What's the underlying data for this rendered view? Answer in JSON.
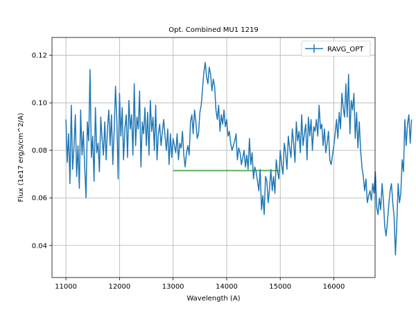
{
  "chart_data": {
    "type": "line",
    "title": "Opt. Combined MU1 1219",
    "xlabel": "Wavelength (A)",
    "ylabel": "Flux (1e17 erg/s/cm^2/A)",
    "xlim": [
      10740,
      16770
    ],
    "ylim": [
      0.0265,
      0.1275
    ],
    "xticks": [
      11000,
      12000,
      13000,
      14000,
      15000,
      16000
    ],
    "yticks": [
      0.04,
      0.06,
      0.08,
      0.1,
      0.12
    ],
    "xtick_labels": [
      "11000",
      "12000",
      "13000",
      "14000",
      "15000",
      "16000"
    ],
    "ytick_labels": [
      "0.04",
      "0.06",
      "0.08",
      "0.10",
      "0.12"
    ],
    "grid": true,
    "legend": {
      "position": "top-right"
    },
    "series": [
      {
        "name": "RAVG_OPT",
        "color": "#1f77b4",
        "style": "line-with-errorbars",
        "x_start": 11000,
        "x_step": 25,
        "values": [
          0.093,
          0.075,
          0.087,
          0.066,
          0.099,
          0.072,
          0.081,
          0.095,
          0.069,
          0.082,
          0.064,
          0.097,
          0.078,
          0.088,
          0.073,
          0.06,
          0.092,
          0.084,
          0.114,
          0.077,
          0.086,
          0.067,
          0.098,
          0.079,
          0.083,
          0.071,
          0.094,
          0.085,
          0.078,
          0.092,
          0.076,
          0.089,
          0.097,
          0.082,
          0.095,
          0.074,
          0.088,
          0.107,
          0.093,
          0.068,
          0.104,
          0.086,
          0.098,
          0.076,
          0.089,
          0.095,
          0.077,
          0.101,
          0.089,
          0.095,
          0.078,
          0.108,
          0.082,
          0.094,
          0.089,
          0.105,
          0.073,
          0.092,
          0.087,
          0.098,
          0.082,
          0.096,
          0.078,
          0.101,
          0.088,
          0.094,
          0.08,
          0.099,
          0.076,
          0.087,
          0.091,
          0.082,
          0.088,
          0.093,
          0.086,
          0.08,
          0.089,
          0.074,
          0.087,
          0.077,
          0.085,
          0.082,
          0.079,
          0.087,
          0.076,
          0.083,
          0.081,
          0.088,
          0.078,
          0.073,
          0.079,
          0.082,
          0.078,
          0.092,
          0.095,
          0.087,
          0.097,
          0.092,
          0.085,
          0.087,
          0.096,
          0.099,
          0.106,
          0.113,
          0.117,
          0.111,
          0.108,
          0.115,
          0.112,
          0.105,
          0.11,
          0.107,
          0.097,
          0.093,
          0.099,
          0.088,
          0.095,
          0.091,
          0.097,
          0.09,
          0.093,
          0.086,
          0.088,
          0.083,
          0.08,
          0.082,
          0.084,
          0.087,
          0.076,
          0.081,
          0.079,
          0.074,
          0.077,
          0.08,
          0.073,
          0.078,
          0.072,
          0.085,
          0.074,
          0.079,
          0.068,
          0.073,
          0.071,
          0.067,
          0.063,
          0.072,
          0.055,
          0.061,
          0.053,
          0.069,
          0.067,
          0.058,
          0.064,
          0.072,
          0.063,
          0.069,
          0.062,
          0.076,
          0.071,
          0.068,
          0.08,
          0.074,
          0.07,
          0.083,
          0.079,
          0.072,
          0.086,
          0.081,
          0.077,
          0.089,
          0.083,
          0.075,
          0.092,
          0.084,
          0.088,
          0.079,
          0.095,
          0.082,
          0.087,
          0.091,
          0.076,
          0.094,
          0.086,
          0.093,
          0.08,
          0.09,
          0.088,
          0.093,
          0.086,
          0.099,
          0.089,
          0.091,
          0.082,
          0.089,
          0.079,
          0.083,
          0.088,
          0.076,
          0.074,
          0.078,
          0.082,
          0.087,
          0.093,
          0.085,
          0.096,
          0.089,
          0.104,
          0.098,
          0.094,
          0.108,
          0.094,
          0.112,
          0.087,
          0.101,
          0.097,
          0.104,
          0.085,
          0.096,
          0.081,
          0.092,
          0.08,
          0.073,
          0.069,
          0.063,
          0.068,
          0.058,
          0.061,
          0.063,
          0.059,
          0.066,
          0.062,
          0.071,
          0.056,
          0.053,
          0.06,
          0.055,
          0.066,
          0.059,
          0.048,
          0.044,
          0.05,
          0.057,
          0.063,
          0.066,
          0.058,
          0.052,
          0.036,
          0.049,
          0.066,
          0.058,
          0.062,
          0.076,
          0.071,
          0.093,
          0.082,
          0.091,
          0.095,
          0.083,
          0.093
        ]
      }
    ],
    "reference_line": {
      "color": "#2ca02c",
      "x": [
        13000,
        15000
      ],
      "y": 0.0715
    }
  }
}
